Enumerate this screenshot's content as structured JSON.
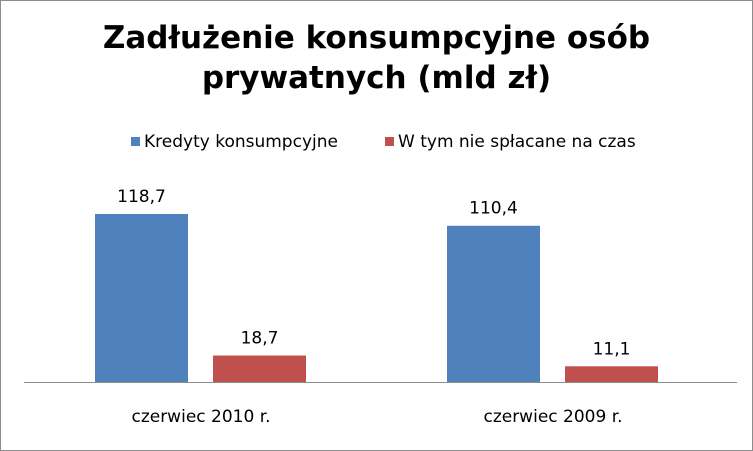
{
  "chart_data": {
    "type": "bar",
    "title": "Zadłużenie konsumpcyjne osób prywatnych (mld zł)",
    "title_lines": [
      "Zadłużenie konsumpcyjne osób",
      "prywatnych (mld zł)"
    ],
    "categories": [
      "czerwiec 2010 r.",
      "czerwiec 2009 r."
    ],
    "series": [
      {
        "name": "Kredyty konsumpcyjne",
        "values": [
          118.7,
          110.4
        ],
        "labels": [
          "118,7",
          "110,4"
        ],
        "color": "#4f81bd"
      },
      {
        "name": "W tym nie spłacane na czas",
        "values": [
          18.7,
          11.1
        ],
        "labels": [
          "18,7",
          "11,1"
        ],
        "color": "#c0504d"
      }
    ],
    "xlabel": "",
    "ylabel": "",
    "ylim": [
      0,
      118.7
    ],
    "grid": false,
    "legend_position": "top"
  }
}
